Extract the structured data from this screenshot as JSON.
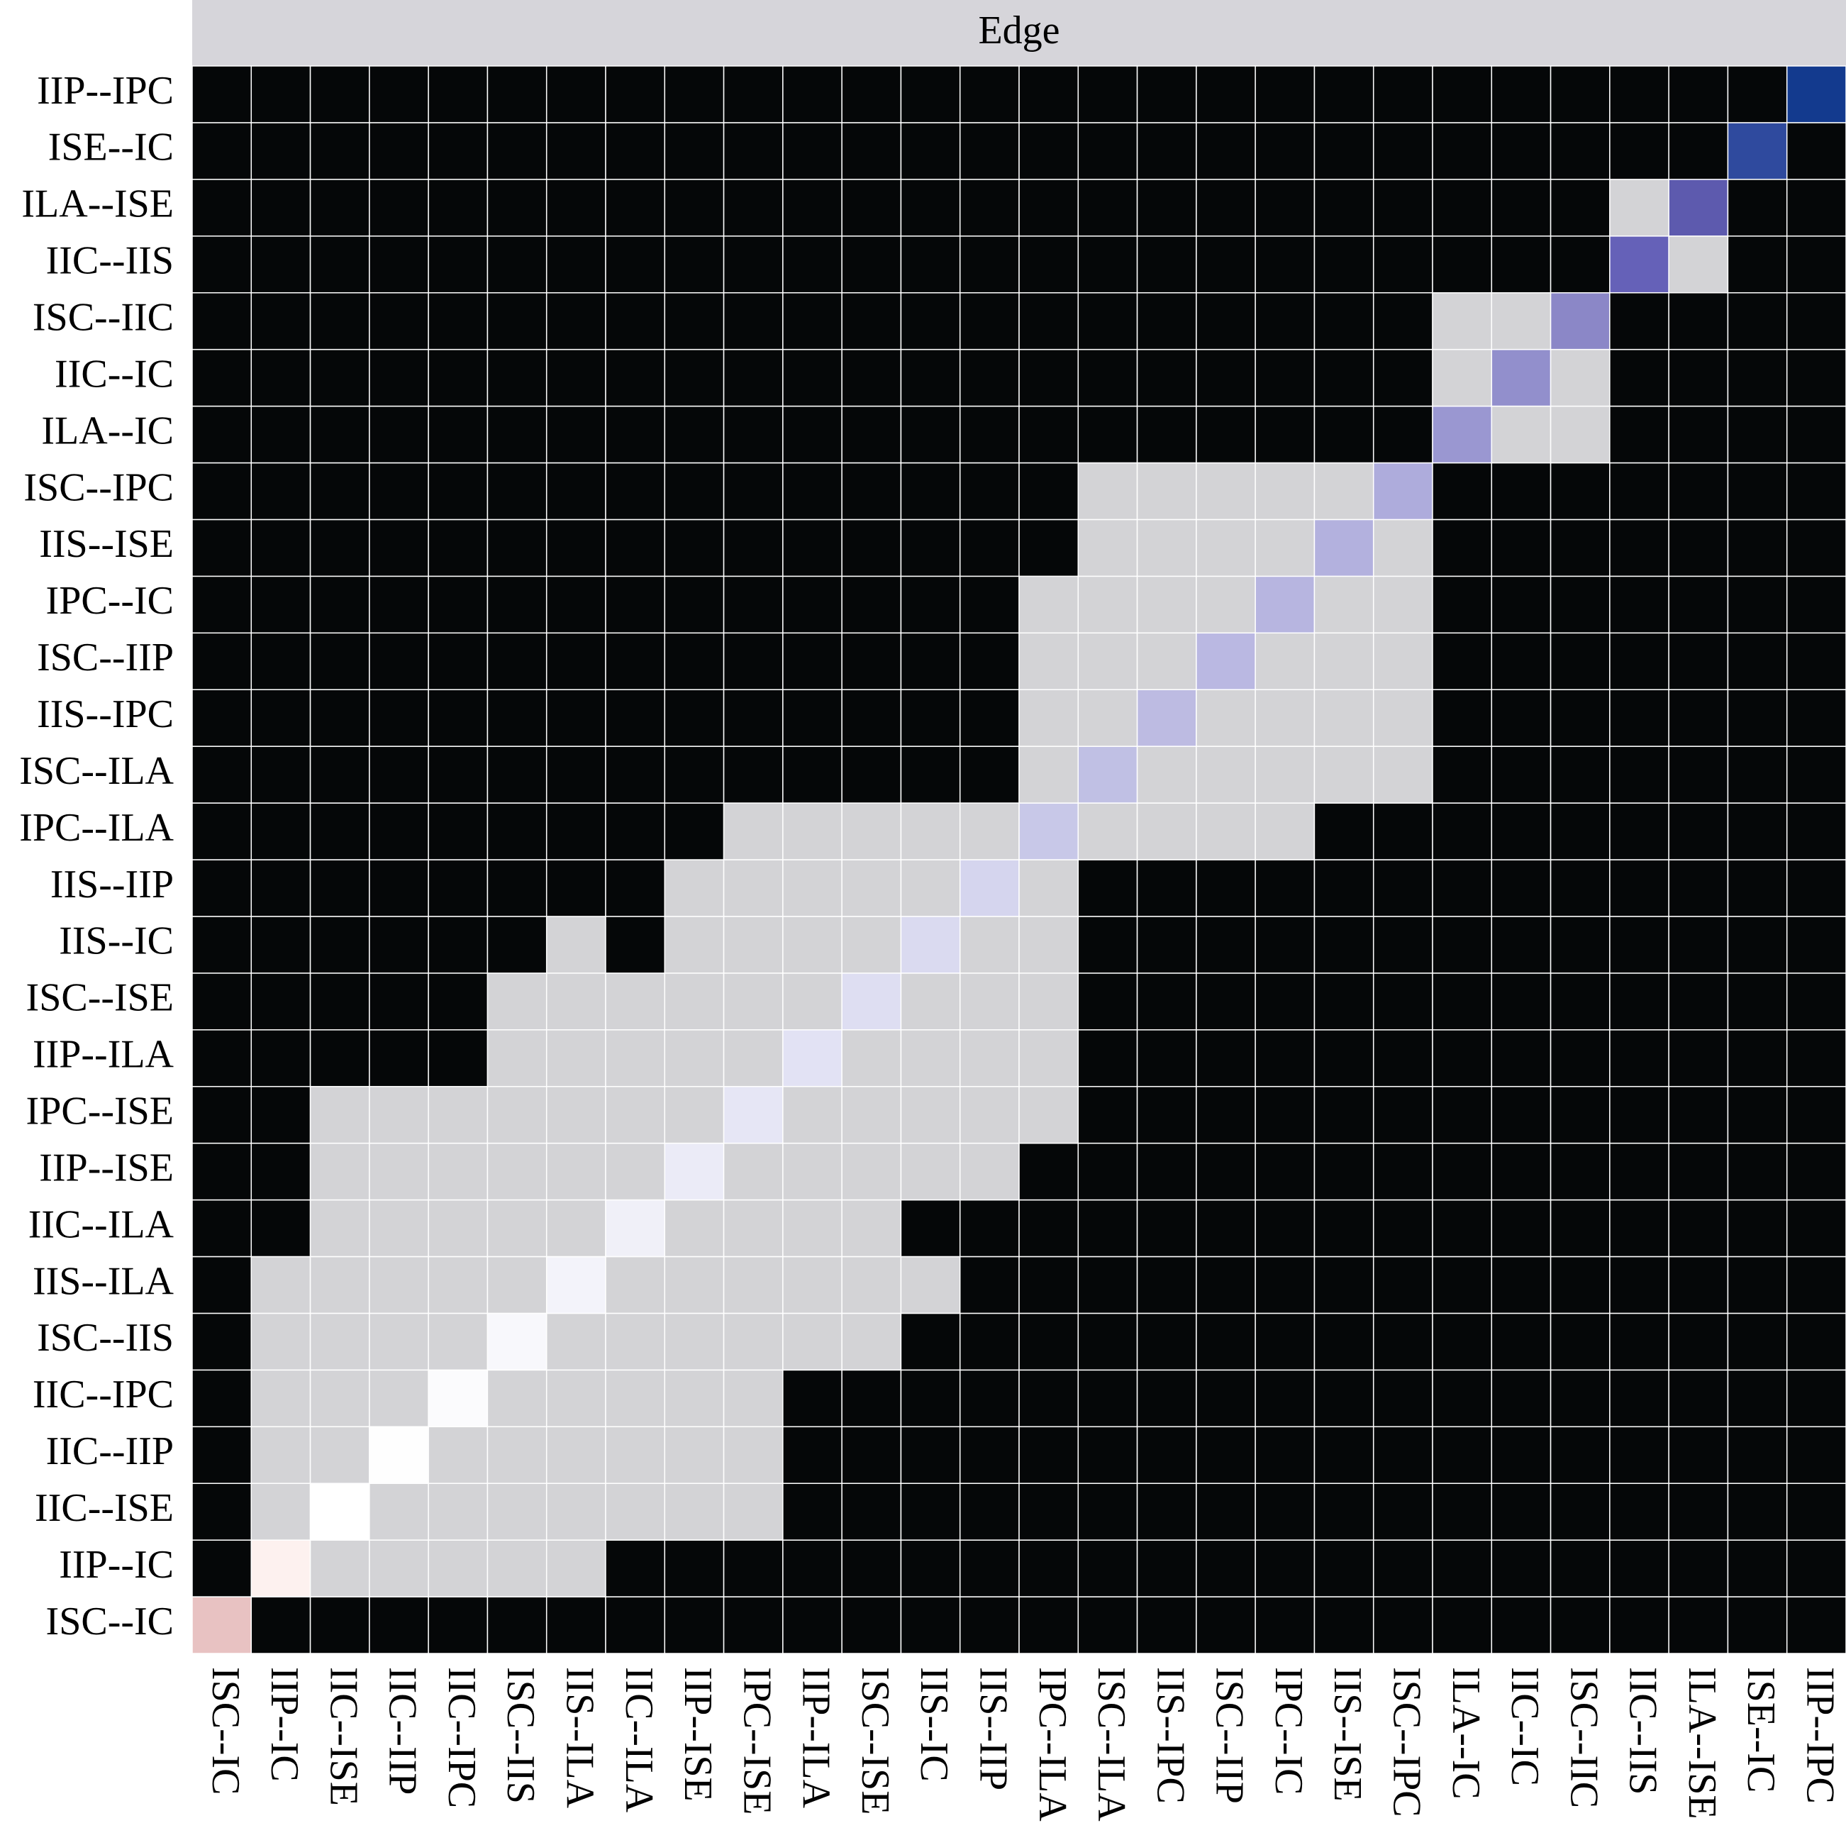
{
  "chart_data": {
    "type": "heatmap",
    "facet_label": "Edge",
    "categories": [
      "ISC--IC",
      "IIP--IC",
      "IIC--ISE",
      "IIC--IIP",
      "IIC--IPC",
      "ISC--IIS",
      "IIS--ILA",
      "IIC--ILA",
      "IIP--ISE",
      "IPC--ISE",
      "IIP--ILA",
      "ISC--ISE",
      "IIS--IC",
      "IIS--IIP",
      "IPC--ILA",
      "ISC--ILA",
      "IIS--IPC",
      "ISC--IIP",
      "IPC--IC",
      "IIS--ISE",
      "ISC--IPC",
      "ILA--IC",
      "IIC--IC",
      "ISC--IIC",
      "IIC--IIS",
      "ILA--ISE",
      "ISE--IC",
      "IIP--IPC"
    ],
    "cell_colors": [
      "#050708",
      "#d3d3d6"
    ],
    "diagonal_colors": [
      "#e8c2c2",
      "#fdf1ef",
      "#ffffff",
      "#fefefe",
      "#fbfbfd",
      "#f8f8fc",
      "#f3f3fa",
      "#f0f0f8",
      "#ebebf7",
      "#e6e6f5",
      "#e2e2f4",
      "#dedef2",
      "#dadaf0",
      "#d5d5ee",
      "#c8c8e8",
      "#c0c0e4",
      "#bdbbe2",
      "#bab8e2",
      "#b7b5e0",
      "#b3b1de",
      "#aeacdc",
      "#9a97d1",
      "#928fcc",
      "#8b87c7",
      "#6561b8",
      "#5d5aae",
      "#2f4a9e",
      "#133a8e"
    ],
    "z": [
      [
        2,
        0,
        0,
        0,
        0,
        0,
        0,
        0,
        0,
        0,
        0,
        0,
        0,
        0,
        0,
        0,
        0,
        0,
        0,
        0,
        0,
        0,
        0,
        0,
        0,
        0,
        0,
        0
      ],
      [
        0,
        2,
        1,
        1,
        1,
        1,
        1,
        0,
        0,
        0,
        0,
        0,
        0,
        0,
        0,
        0,
        0,
        0,
        0,
        0,
        0,
        0,
        0,
        0,
        0,
        0,
        0,
        0
      ],
      [
        0,
        1,
        2,
        1,
        1,
        1,
        1,
        1,
        1,
        1,
        0,
        0,
        0,
        0,
        0,
        0,
        0,
        0,
        0,
        0,
        0,
        0,
        0,
        0,
        0,
        0,
        0,
        0
      ],
      [
        0,
        1,
        1,
        2,
        1,
        1,
        1,
        1,
        1,
        1,
        0,
        0,
        0,
        0,
        0,
        0,
        0,
        0,
        0,
        0,
        0,
        0,
        0,
        0,
        0,
        0,
        0,
        0
      ],
      [
        0,
        1,
        1,
        1,
        2,
        1,
        1,
        1,
        1,
        1,
        0,
        0,
        0,
        0,
        0,
        0,
        0,
        0,
        0,
        0,
        0,
        0,
        0,
        0,
        0,
        0,
        0,
        0
      ],
      [
        0,
        1,
        1,
        1,
        1,
        2,
        1,
        1,
        1,
        1,
        1,
        1,
        0,
        0,
        0,
        0,
        0,
        0,
        0,
        0,
        0,
        0,
        0,
        0,
        0,
        0,
        0,
        0
      ],
      [
        0,
        1,
        1,
        1,
        1,
        1,
        2,
        1,
        1,
        1,
        1,
        1,
        1,
        0,
        0,
        0,
        0,
        0,
        0,
        0,
        0,
        0,
        0,
        0,
        0,
        0,
        0,
        0
      ],
      [
        0,
        0,
        1,
        1,
        1,
        1,
        1,
        2,
        1,
        1,
        1,
        1,
        0,
        0,
        0,
        0,
        0,
        0,
        0,
        0,
        0,
        0,
        0,
        0,
        0,
        0,
        0,
        0
      ],
      [
        0,
        0,
        1,
        1,
        1,
        1,
        1,
        1,
        2,
        1,
        1,
        1,
        1,
        1,
        0,
        0,
        0,
        0,
        0,
        0,
        0,
        0,
        0,
        0,
        0,
        0,
        0,
        0
      ],
      [
        0,
        0,
        1,
        1,
        1,
        1,
        1,
        1,
        1,
        2,
        1,
        1,
        1,
        1,
        1,
        0,
        0,
        0,
        0,
        0,
        0,
        0,
        0,
        0,
        0,
        0,
        0,
        0
      ],
      [
        0,
        0,
        0,
        0,
        0,
        1,
        1,
        1,
        1,
        1,
        2,
        1,
        1,
        1,
        1,
        0,
        0,
        0,
        0,
        0,
        0,
        0,
        0,
        0,
        0,
        0,
        0,
        0
      ],
      [
        0,
        0,
        0,
        0,
        0,
        1,
        1,
        1,
        1,
        1,
        1,
        2,
        1,
        1,
        1,
        0,
        0,
        0,
        0,
        0,
        0,
        0,
        0,
        0,
        0,
        0,
        0,
        0
      ],
      [
        0,
        0,
        0,
        0,
        0,
        0,
        1,
        0,
        1,
        1,
        1,
        1,
        2,
        1,
        1,
        0,
        0,
        0,
        0,
        0,
        0,
        0,
        0,
        0,
        0,
        0,
        0,
        0
      ],
      [
        0,
        0,
        0,
        0,
        0,
        0,
        0,
        0,
        1,
        1,
        1,
        1,
        1,
        2,
        1,
        0,
        0,
        0,
        0,
        0,
        0,
        0,
        0,
        0,
        0,
        0,
        0,
        0
      ],
      [
        0,
        0,
        0,
        0,
        0,
        0,
        0,
        0,
        0,
        1,
        1,
        1,
        1,
        1,
        2,
        1,
        1,
        1,
        1,
        0,
        0,
        0,
        0,
        0,
        0,
        0,
        0,
        0
      ],
      [
        0,
        0,
        0,
        0,
        0,
        0,
        0,
        0,
        0,
        0,
        0,
        0,
        0,
        0,
        1,
        2,
        1,
        1,
        1,
        1,
        1,
        0,
        0,
        0,
        0,
        0,
        0,
        0
      ],
      [
        0,
        0,
        0,
        0,
        0,
        0,
        0,
        0,
        0,
        0,
        0,
        0,
        0,
        0,
        1,
        1,
        2,
        1,
        1,
        1,
        1,
        0,
        0,
        0,
        0,
        0,
        0,
        0
      ],
      [
        0,
        0,
        0,
        0,
        0,
        0,
        0,
        0,
        0,
        0,
        0,
        0,
        0,
        0,
        1,
        1,
        1,
        2,
        1,
        1,
        1,
        0,
        0,
        0,
        0,
        0,
        0,
        0
      ],
      [
        0,
        0,
        0,
        0,
        0,
        0,
        0,
        0,
        0,
        0,
        0,
        0,
        0,
        0,
        1,
        1,
        1,
        1,
        2,
        1,
        1,
        0,
        0,
        0,
        0,
        0,
        0,
        0
      ],
      [
        0,
        0,
        0,
        0,
        0,
        0,
        0,
        0,
        0,
        0,
        0,
        0,
        0,
        0,
        0,
        1,
        1,
        1,
        1,
        2,
        1,
        0,
        0,
        0,
        0,
        0,
        0,
        0
      ],
      [
        0,
        0,
        0,
        0,
        0,
        0,
        0,
        0,
        0,
        0,
        0,
        0,
        0,
        0,
        0,
        1,
        1,
        1,
        1,
        1,
        2,
        0,
        0,
        0,
        0,
        0,
        0,
        0
      ],
      [
        0,
        0,
        0,
        0,
        0,
        0,
        0,
        0,
        0,
        0,
        0,
        0,
        0,
        0,
        0,
        0,
        0,
        0,
        0,
        0,
        0,
        2,
        1,
        1,
        0,
        0,
        0,
        0
      ],
      [
        0,
        0,
        0,
        0,
        0,
        0,
        0,
        0,
        0,
        0,
        0,
        0,
        0,
        0,
        0,
        0,
        0,
        0,
        0,
        0,
        0,
        1,
        2,
        1,
        0,
        0,
        0,
        0
      ],
      [
        0,
        0,
        0,
        0,
        0,
        0,
        0,
        0,
        0,
        0,
        0,
        0,
        0,
        0,
        0,
        0,
        0,
        0,
        0,
        0,
        0,
        1,
        1,
        2,
        0,
        0,
        0,
        0
      ],
      [
        0,
        0,
        0,
        0,
        0,
        0,
        0,
        0,
        0,
        0,
        0,
        0,
        0,
        0,
        0,
        0,
        0,
        0,
        0,
        0,
        0,
        0,
        0,
        0,
        2,
        1,
        0,
        0
      ],
      [
        0,
        0,
        0,
        0,
        0,
        0,
        0,
        0,
        0,
        0,
        0,
        0,
        0,
        0,
        0,
        0,
        0,
        0,
        0,
        0,
        0,
        0,
        0,
        0,
        1,
        2,
        0,
        0
      ],
      [
        0,
        0,
        0,
        0,
        0,
        0,
        0,
        0,
        0,
        0,
        0,
        0,
        0,
        0,
        0,
        0,
        0,
        0,
        0,
        0,
        0,
        0,
        0,
        0,
        0,
        0,
        2,
        0
      ],
      [
        0,
        0,
        0,
        0,
        0,
        0,
        0,
        0,
        0,
        0,
        0,
        0,
        0,
        0,
        0,
        0,
        0,
        0,
        0,
        0,
        0,
        0,
        0,
        0,
        0,
        0,
        0,
        2
      ]
    ]
  }
}
